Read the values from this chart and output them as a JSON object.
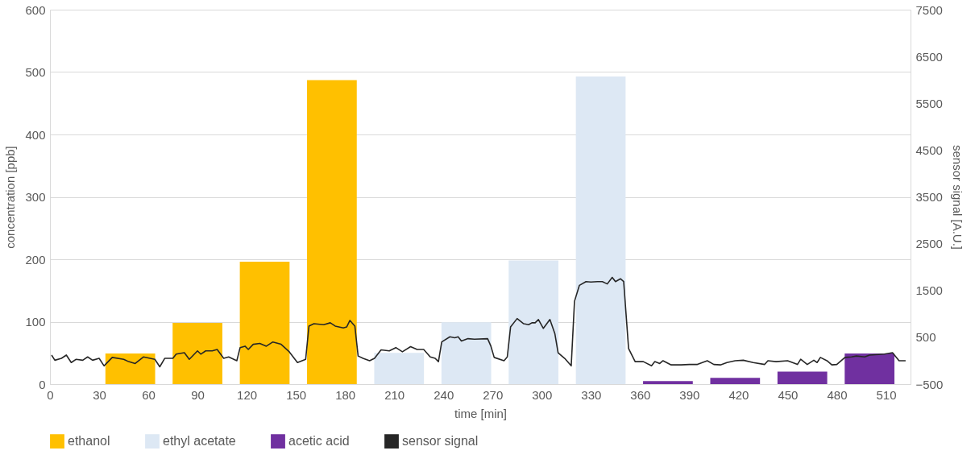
{
  "chart_data": {
    "type": "bar",
    "xlabel": "time [min]",
    "ylabel": "concentration [ppb]",
    "y2label": "sensor signal [A.U.]",
    "xlim": [
      0,
      525
    ],
    "xticks": [
      0,
      30,
      60,
      90,
      120,
      150,
      180,
      210,
      240,
      270,
      300,
      330,
      360,
      390,
      420,
      450,
      480,
      510
    ],
    "ylim": [
      0,
      600
    ],
    "yticks": [
      0,
      100,
      200,
      300,
      400,
      500,
      600
    ],
    "y2lim": [
      -500,
      7500
    ],
    "y2ticks": [
      -500,
      500,
      1500,
      2500,
      3500,
      4500,
      5500,
      6500,
      7500
    ],
    "grid": "y",
    "legend": "bottom",
    "series": [
      {
        "name": "ethanol",
        "color": "#ffc000",
        "x": [
          49,
          90,
          131,
          172
        ],
        "values": [
          49,
          98,
          196,
          487
        ]
      },
      {
        "name": "ethyl acetate",
        "color": "#dde8f4",
        "x": [
          213,
          254,
          295,
          336
        ],
        "values": [
          50,
          99,
          198,
          493
        ]
      },
      {
        "name": "acetic acid",
        "color": "#7030a0",
        "x": [
          377,
          418,
          459,
          500
        ],
        "values": [
          5,
          10,
          20,
          49
        ]
      },
      {
        "name": "sensor signal",
        "color": "#262626",
        "type": "line",
        "axis": "y2",
        "x": [
          1,
          3,
          7,
          10,
          13,
          16,
          20,
          23,
          26,
          30,
          33,
          38,
          45,
          48,
          52,
          57,
          64,
          67,
          70,
          75,
          77,
          82,
          85,
          90,
          92,
          95,
          99,
          102,
          106,
          109,
          114,
          116,
          119,
          121,
          124,
          128,
          132,
          136,
          141,
          146,
          151,
          156,
          158,
          161,
          167,
          171,
          174,
          179,
          181,
          183,
          186,
          188,
          191,
          195,
          198,
          202,
          207,
          211,
          215,
          220,
          224,
          228,
          232,
          235,
          237,
          239,
          244,
          247,
          249,
          251,
          255,
          259,
          267,
          269,
          271,
          277,
          279,
          281,
          285,
          289,
          292,
          294,
          296,
          298,
          301,
          305,
          308,
          310,
          314,
          318,
          320,
          323,
          327,
          330,
          334,
          337,
          340,
          343,
          345,
          348,
          350,
          353,
          357,
          362,
          367,
          369,
          372,
          374,
          379,
          385,
          390,
          395,
          401,
          405,
          409,
          413,
          418,
          423,
          429,
          436,
          438,
          443,
          450,
          456,
          458,
          462,
          466,
          468,
          470,
          474,
          477,
          480,
          485,
          489,
          492,
          497,
          500,
          509,
          514,
          518,
          522
        ],
        "values": [
          120,
          10,
          50,
          120,
          -40,
          30,
          10,
          80,
          10,
          50,
          -110,
          70,
          30,
          -20,
          -60,
          80,
          30,
          -130,
          50,
          50,
          140,
          170,
          30,
          210,
          140,
          210,
          210,
          240,
          50,
          80,
          0,
          280,
          310,
          240,
          350,
          370,
          310,
          400,
          350,
          190,
          -40,
          30,
          740,
          790,
          770,
          810,
          740,
          700,
          720,
          860,
          740,
          100,
          50,
          0,
          50,
          230,
          210,
          280,
          190,
          300,
          240,
          240,
          80,
          50,
          -20,
          400,
          510,
          490,
          510,
          420,
          470,
          460,
          470,
          310,
          70,
          0,
          80,
          720,
          900,
          790,
          770,
          810,
          810,
          880,
          690,
          880,
          580,
          170,
          50,
          -110,
          1270,
          1610,
          1690,
          1680,
          1690,
          1690,
          1640,
          1780,
          1690,
          1750,
          1690,
          260,
          -20,
          -20,
          -110,
          -20,
          -60,
          0,
          -90,
          -90,
          -80,
          -80,
          0,
          -80,
          -90,
          -40,
          0,
          10,
          -40,
          -80,
          0,
          -20,
          0,
          -80,
          30,
          -80,
          10,
          -40,
          70,
          0,
          -90,
          -80,
          70,
          80,
          100,
          80,
          120,
          140,
          170,
          0,
          0
        ]
      }
    ]
  }
}
